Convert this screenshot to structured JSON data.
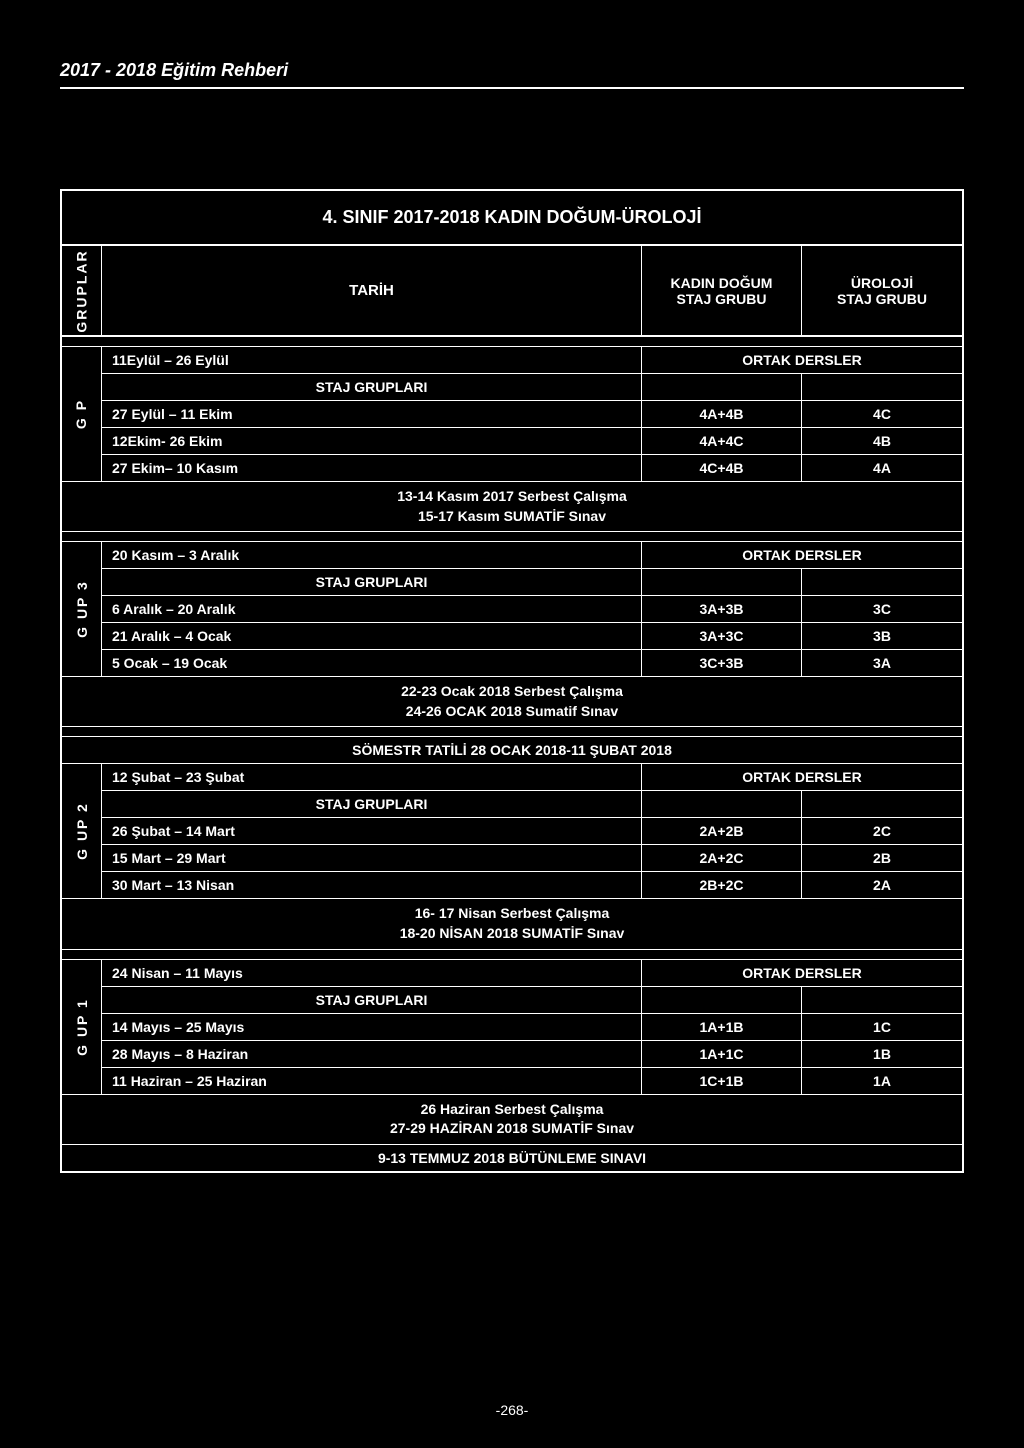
{
  "header": "2017 - 2018 Eğitim Rehberi",
  "title": "4. SINIF 2017-2018 KADIN DOĞUM-ÜROLOJİ",
  "columns": {
    "gruplar": "GRUPLAR",
    "tarih": "TARİH",
    "kadin1": "KADIN DOĞUM",
    "kadin2": "STAJ GRUBU",
    "uroloji1": "ÜROLOJİ",
    "uroloji2": "STAJ GRUBU"
  },
  "labels": {
    "ortak": "ORTAK DERSLER",
    "staj": "STAJ GRUPLARI"
  },
  "groups": [
    {
      "label": "G    P",
      "ortak_date": "11Eylül – 26 Eylül",
      "rows": [
        {
          "date": "27 Eylül – 11 Ekim",
          "c2": "4A+4B",
          "c3": "4C"
        },
        {
          "date": "12Ekim- 26 Ekim",
          "c2": "4A+4C",
          "c3": "4B"
        },
        {
          "date": "27 Ekim– 10 Kasım",
          "c2": "4C+4B",
          "c3": "4A"
        }
      ],
      "after": [
        "13-14 Kasım 2017 Serbest Çalışma",
        "15-17 Kasım SUMATİF Sınav"
      ]
    },
    {
      "label": "G  UP 3",
      "ortak_date": "20 Kasım – 3 Aralık",
      "rows": [
        {
          "date": "6 Aralık – 20 Aralık",
          "c2": "3A+3B",
          "c3": "3C"
        },
        {
          "date": "21 Aralık – 4 Ocak",
          "c2": "3A+3C",
          "c3": "3B"
        },
        {
          "date": "5 Ocak – 19 Ocak",
          "c2": "3C+3B",
          "c3": "3A"
        }
      ],
      "after": [
        "22-23 Ocak 2018 Serbest Çalışma",
        "24-26 OCAK 2018 Sumatif Sınav"
      ]
    },
    {
      "label": "G  UP 2",
      "pre": "SÖMESTR TATİLİ 28 OCAK 2018-11 ŞUBAT 2018",
      "ortak_date": "12 Şubat – 23 Şubat",
      "rows": [
        {
          "date": "26 Şubat – 14 Mart",
          "c2": "2A+2B",
          "c3": "2C"
        },
        {
          "date": "15 Mart – 29 Mart",
          "c2": "2A+2C",
          "c3": "2B"
        },
        {
          "date": "30 Mart – 13 Nisan",
          "c2": "2B+2C",
          "c3": "2A"
        }
      ],
      "after": [
        "16- 17 Nisan Serbest Çalışma",
        "18-20 NİSAN 2018 SUMATİF Sınav"
      ]
    },
    {
      "label": "G  UP 1",
      "ortak_date": "24 Nisan – 11 Mayıs",
      "rows": [
        {
          "date": "14 Mayıs – 25 Mayıs",
          "c2": "1A+1B",
          "c3": "1C"
        },
        {
          "date": "28 Mayıs – 8 Haziran",
          "c2": "1A+1C",
          "c3": "1B"
        },
        {
          "date": "11 Haziran – 25 Haziran",
          "c2": "1C+1B",
          "c3": "1A"
        }
      ],
      "after": [
        "26 Haziran Serbest Çalışma",
        "27-29 HAZİRAN 2018 SUMATİF Sınav"
      ],
      "final": "9-13 TEMMUZ 2018 BÜTÜNLEME SINAVI"
    }
  ],
  "page_number": "-268-"
}
